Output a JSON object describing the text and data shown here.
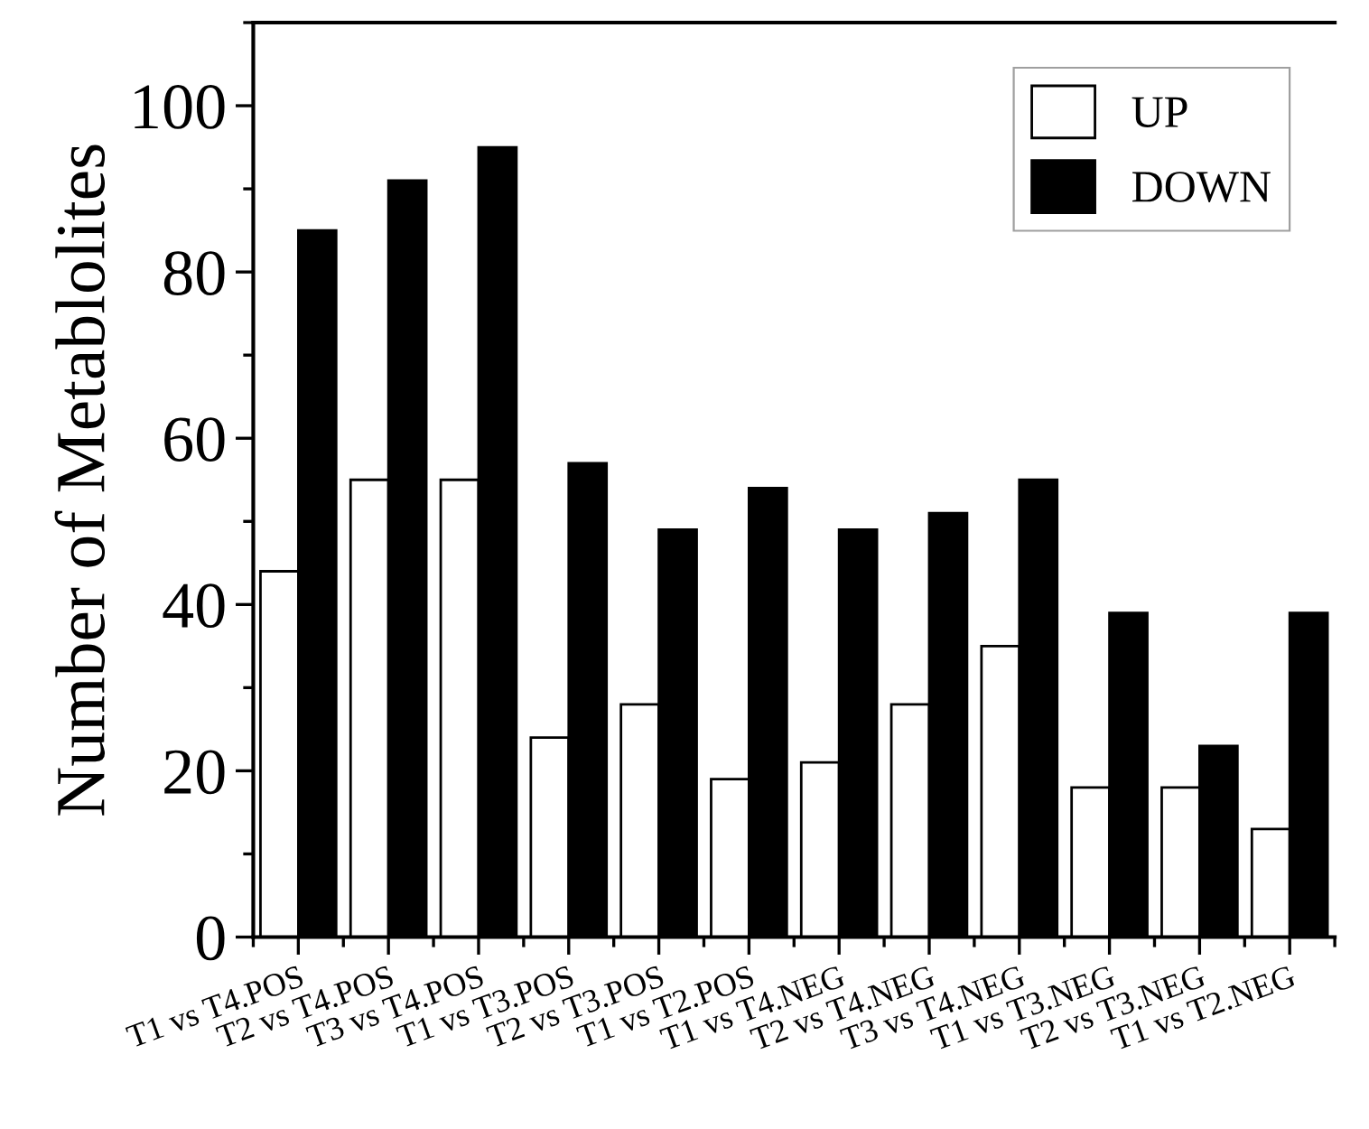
{
  "chart_data": {
    "type": "bar",
    "ylabel": "Number of Metablolites",
    "categories": [
      "T1 vs T4.POS",
      "T2 vs T4.POS",
      "T3 vs T4.POS",
      "T1 vs T3.POS",
      "T2 vs T3.POS",
      "T1 vs T2.POS",
      "T1 vs T4.NEG",
      "T2 vs T4.NEG",
      "T3 vs T4.NEG",
      "T1 vs T3.NEG",
      "T2 vs T3.NEG",
      "T1 vs T2.NEG"
    ],
    "series": [
      {
        "name": "UP",
        "color": "#ffffff",
        "values": [
          44,
          55,
          55,
          24,
          28,
          19,
          21,
          28,
          35,
          18,
          18,
          13
        ]
      },
      {
        "name": "DOWN",
        "color": "#000000",
        "values": [
          85,
          91,
          95,
          57,
          49,
          54,
          49,
          51,
          55,
          39,
          23,
          39
        ]
      }
    ],
    "ylim": [
      0,
      110
    ],
    "yticks": [
      0,
      20,
      40,
      60,
      80,
      100
    ],
    "grid": false,
    "legend": "top right"
  }
}
